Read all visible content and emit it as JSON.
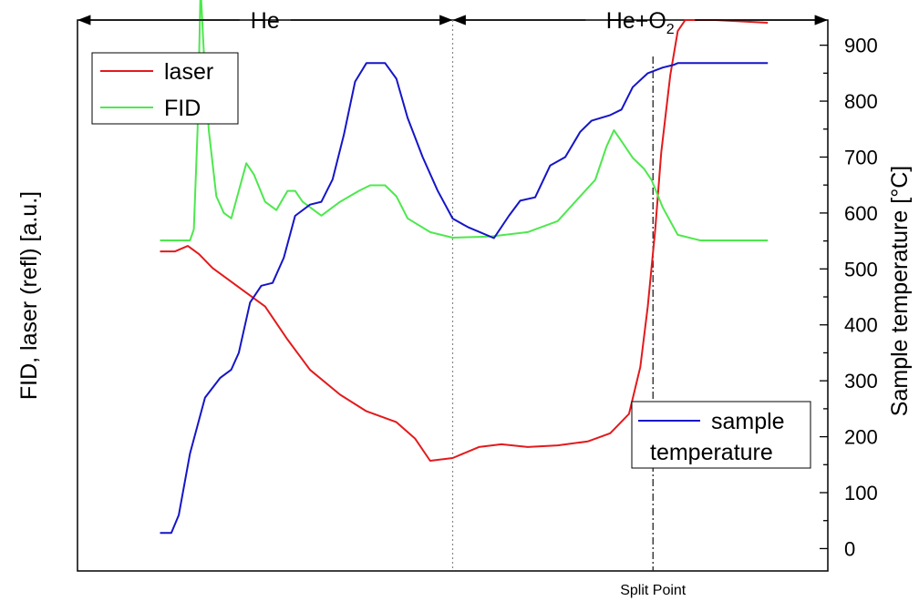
{
  "chart_data": {
    "type": "line",
    "ylabel_left": "FID, laser (refl) [a.u.]",
    "ylabel_right": "Sample temperature [°C]",
    "right_axis": {
      "range": [
        -40,
        945
      ],
      "ticks": [
        0,
        100,
        200,
        300,
        400,
        500,
        600,
        700,
        800,
        900
      ]
    },
    "left_axis": {
      "range": [
        0,
        1
      ],
      "ticks": []
    },
    "x_axis": {
      "range": [
        0,
        1
      ],
      "ticks": []
    },
    "regions": [
      {
        "label": "He",
        "start": 0.0,
        "end": 0.5
      },
      {
        "label_main": "He+O",
        "label_sub": "2",
        "start": 0.5,
        "end": 1.0
      }
    ],
    "split_point": {
      "label": "Split Point",
      "x": 0.767
    },
    "phase_divider_x": 0.5,
    "legend_left": {
      "position": "top-left",
      "entries": [
        "laser",
        "FID"
      ]
    },
    "legend_right": {
      "position": "bottom-right",
      "label_lines": [
        "sample",
        "temperature"
      ]
    },
    "series": [
      {
        "name": "laser",
        "color": "#e31a1c",
        "axis": "left",
        "points": [
          [
            0.11,
            0.58
          ],
          [
            0.13,
            0.58
          ],
          [
            0.147,
            0.59
          ],
          [
            0.162,
            0.575
          ],
          [
            0.18,
            0.55
          ],
          [
            0.21,
            0.52
          ],
          [
            0.25,
            0.48
          ],
          [
            0.28,
            0.42
          ],
          [
            0.31,
            0.365
          ],
          [
            0.35,
            0.32
          ],
          [
            0.385,
            0.29
          ],
          [
            0.425,
            0.27
          ],
          [
            0.45,
            0.24
          ],
          [
            0.47,
            0.2
          ],
          [
            0.5,
            0.205
          ],
          [
            0.535,
            0.225
          ],
          [
            0.565,
            0.23
          ],
          [
            0.6,
            0.225
          ],
          [
            0.64,
            0.228
          ],
          [
            0.68,
            0.235
          ],
          [
            0.71,
            0.25
          ],
          [
            0.735,
            0.285
          ],
          [
            0.75,
            0.37
          ],
          [
            0.76,
            0.48
          ],
          [
            0.77,
            0.62
          ],
          [
            0.778,
            0.76
          ],
          [
            0.79,
            0.9
          ],
          [
            0.8,
            0.98
          ],
          [
            0.81,
            1.0
          ],
          [
            0.85,
            1.0
          ],
          [
            0.92,
            0.995
          ]
        ]
      },
      {
        "name": "FID",
        "color": "#4de84d",
        "axis": "left",
        "points": [
          [
            0.11,
            0.6
          ],
          [
            0.15,
            0.6
          ],
          [
            0.155,
            0.62
          ],
          [
            0.16,
            0.8
          ],
          [
            0.164,
            1.06
          ],
          [
            0.168,
            0.95
          ],
          [
            0.175,
            0.8
          ],
          [
            0.185,
            0.68
          ],
          [
            0.195,
            0.65
          ],
          [
            0.205,
            0.64
          ],
          [
            0.215,
            0.69
          ],
          [
            0.225,
            0.74
          ],
          [
            0.235,
            0.72
          ],
          [
            0.25,
            0.67
          ],
          [
            0.265,
            0.655
          ],
          [
            0.28,
            0.69
          ],
          [
            0.29,
            0.69
          ],
          [
            0.3,
            0.67
          ],
          [
            0.325,
            0.645
          ],
          [
            0.35,
            0.67
          ],
          [
            0.375,
            0.69
          ],
          [
            0.39,
            0.7
          ],
          [
            0.41,
            0.7
          ],
          [
            0.425,
            0.68
          ],
          [
            0.44,
            0.64
          ],
          [
            0.47,
            0.615
          ],
          [
            0.5,
            0.605
          ],
          [
            0.55,
            0.607
          ],
          [
            0.6,
            0.615
          ],
          [
            0.64,
            0.635
          ],
          [
            0.67,
            0.68
          ],
          [
            0.69,
            0.71
          ],
          [
            0.705,
            0.77
          ],
          [
            0.715,
            0.8
          ],
          [
            0.725,
            0.78
          ],
          [
            0.74,
            0.75
          ],
          [
            0.755,
            0.73
          ],
          [
            0.765,
            0.71
          ],
          [
            0.78,
            0.66
          ],
          [
            0.8,
            0.61
          ],
          [
            0.83,
            0.6
          ],
          [
            0.92,
            0.6
          ]
        ]
      },
      {
        "name": "sample temperature",
        "color": "#1515c8",
        "axis": "right",
        "points": [
          [
            0.11,
            28
          ],
          [
            0.125,
            28
          ],
          [
            0.135,
            60
          ],
          [
            0.15,
            170
          ],
          [
            0.17,
            270
          ],
          [
            0.19,
            305
          ],
          [
            0.205,
            320
          ],
          [
            0.215,
            350
          ],
          [
            0.23,
            440
          ],
          [
            0.245,
            470
          ],
          [
            0.26,
            475
          ],
          [
            0.275,
            520
          ],
          [
            0.29,
            595
          ],
          [
            0.31,
            615
          ],
          [
            0.325,
            620
          ],
          [
            0.34,
            660
          ],
          [
            0.355,
            740
          ],
          [
            0.37,
            835
          ],
          [
            0.385,
            868
          ],
          [
            0.41,
            868
          ],
          [
            0.425,
            840
          ],
          [
            0.44,
            770
          ],
          [
            0.46,
            700
          ],
          [
            0.48,
            640
          ],
          [
            0.5,
            590
          ],
          [
            0.52,
            575
          ],
          [
            0.555,
            555
          ],
          [
            0.575,
            595
          ],
          [
            0.59,
            622
          ],
          [
            0.61,
            628
          ],
          [
            0.63,
            685
          ],
          [
            0.65,
            700
          ],
          [
            0.67,
            745
          ],
          [
            0.685,
            765
          ],
          [
            0.71,
            775
          ],
          [
            0.725,
            785
          ],
          [
            0.74,
            825
          ],
          [
            0.76,
            850
          ],
          [
            0.78,
            860
          ],
          [
            0.795,
            865
          ],
          [
            0.8,
            868
          ],
          [
            0.92,
            868
          ]
        ]
      }
    ]
  }
}
